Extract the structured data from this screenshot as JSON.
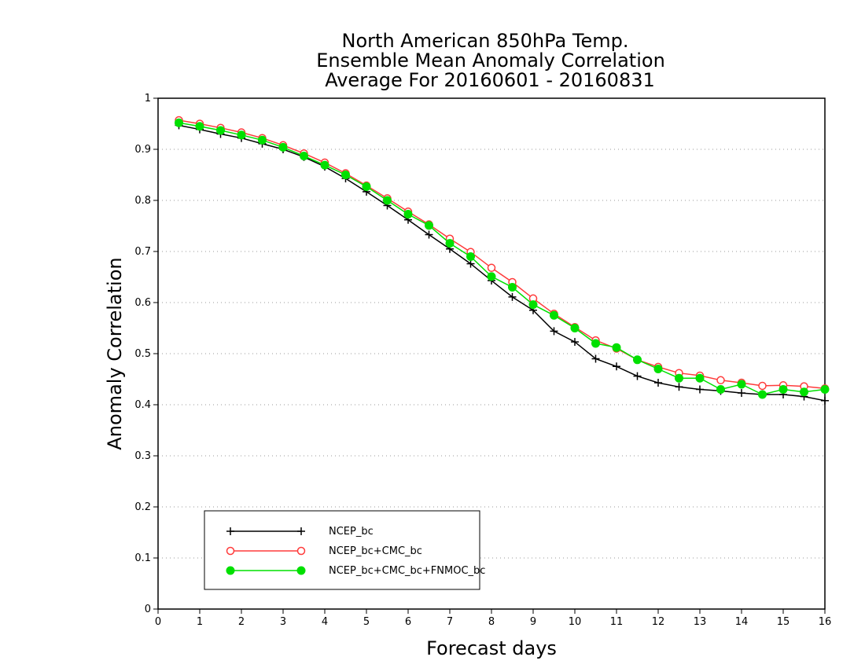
{
  "chart_data": {
    "type": "line",
    "title": [
      "North American 850hPa Temp.",
      "Ensemble Mean Anomaly Correlation",
      "Average For 20160601 - 20160831"
    ],
    "xlabel": "Forecast days",
    "ylabel": "Anomaly Correlation",
    "xlim": [
      0,
      16
    ],
    "ylim": [
      0,
      1
    ],
    "xticks": [
      "0",
      "1",
      "2",
      "3",
      "4",
      "5",
      "6",
      "7",
      "8",
      "9",
      "10",
      "11",
      "12",
      "13",
      "14",
      "15",
      "16"
    ],
    "yticks": [
      "0",
      "0.1",
      "0.2",
      "0.3",
      "0.4",
      "0.5",
      "0.6",
      "0.7",
      "0.8",
      "0.9",
      "1"
    ],
    "grid": "horizontal-dotted",
    "legend_position": "bottom-left",
    "x": [
      0.5,
      1,
      1.5,
      2,
      2.5,
      3,
      3.5,
      4,
      4.5,
      5,
      5.5,
      6,
      6.5,
      7,
      7.5,
      8,
      8.5,
      9,
      9.5,
      10,
      10.5,
      11,
      11.5,
      12,
      12.5,
      13,
      13.5,
      14,
      14.5,
      15,
      15.5,
      16
    ],
    "series": [
      {
        "name": "NCEP_bc",
        "color": "#000000",
        "marker": "plus",
        "values": [
          0.947,
          0.939,
          0.93,
          0.922,
          0.911,
          0.9,
          0.885,
          0.866,
          0.843,
          0.817,
          0.79,
          0.762,
          0.733,
          0.705,
          0.676,
          0.643,
          0.611,
          0.585,
          0.544,
          0.523,
          0.49,
          0.475,
          0.456,
          0.443,
          0.435,
          0.43,
          0.427,
          0.423,
          0.42,
          0.42,
          0.416,
          0.408
        ]
      },
      {
        "name": "NCEP_bc+CMC_bc",
        "color": "#ff3b3b",
        "marker": "open-circle",
        "values": [
          0.957,
          0.95,
          0.942,
          0.933,
          0.922,
          0.908,
          0.892,
          0.874,
          0.853,
          0.829,
          0.804,
          0.778,
          0.753,
          0.725,
          0.699,
          0.668,
          0.64,
          0.608,
          0.578,
          0.552,
          0.526,
          0.51,
          0.488,
          0.474,
          0.462,
          0.457,
          0.448,
          0.443,
          0.437,
          0.438,
          0.436,
          0.432
        ]
      },
      {
        "name": "NCEP_bc+CMC_bc+FNMOC_bc",
        "color": "#00e000",
        "marker": "filled-circle",
        "values": [
          0.952,
          0.945,
          0.937,
          0.928,
          0.918,
          0.904,
          0.887,
          0.869,
          0.85,
          0.827,
          0.8,
          0.773,
          0.751,
          0.716,
          0.69,
          0.651,
          0.63,
          0.596,
          0.575,
          0.55,
          0.52,
          0.512,
          0.488,
          0.47,
          0.452,
          0.452,
          0.43,
          0.44,
          0.42,
          0.43,
          0.425,
          0.43
        ]
      }
    ]
  }
}
